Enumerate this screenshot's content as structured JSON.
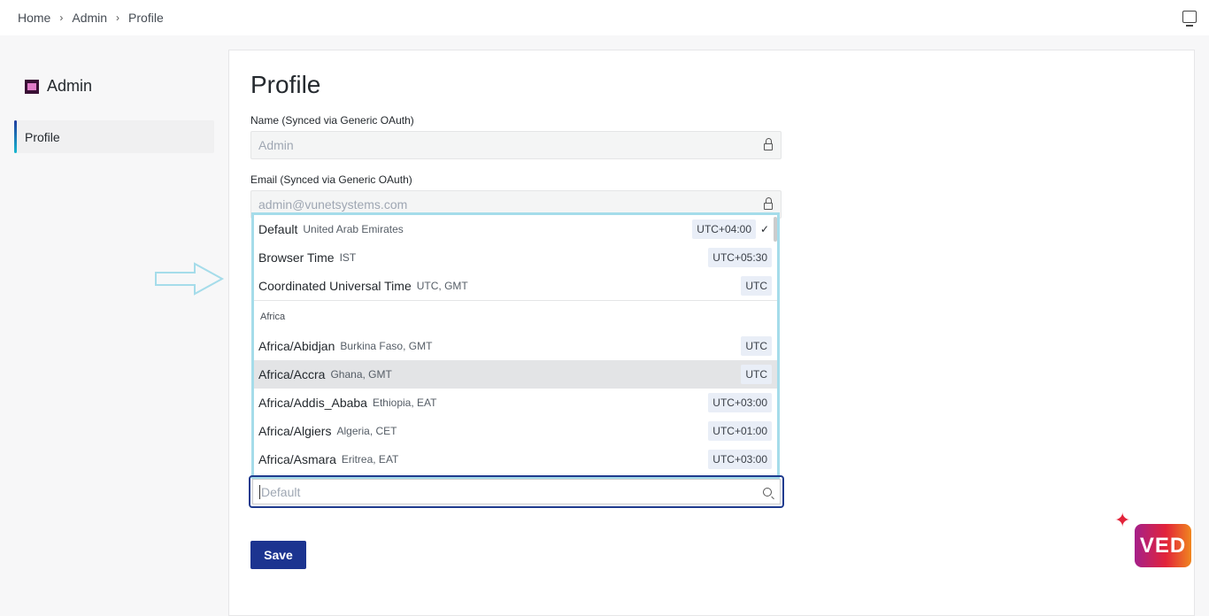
{
  "breadcrumb": [
    "Home",
    "Admin",
    "Profile"
  ],
  "sidebar": {
    "title": "Admin",
    "items": [
      {
        "label": "Profile",
        "active": true
      }
    ]
  },
  "page_title": "Profile",
  "name_field": {
    "label": "Name (Synced via Generic OAuth)",
    "value": "Admin"
  },
  "email_field": {
    "label": "Email (Synced via Generic OAuth)",
    "value": "admin@vunetsystems.com"
  },
  "timezone": {
    "placeholder": "Default",
    "options": [
      {
        "name": "Default",
        "sub": "United Arab Emirates",
        "offset": "UTC+04:00",
        "selected": true
      },
      {
        "name": "Browser Time",
        "sub": "IST",
        "offset": "UTC+05:30"
      },
      {
        "name": "Coordinated Universal Time",
        "sub": "UTC, GMT",
        "offset": "UTC"
      }
    ],
    "group": "Africa",
    "group_options": [
      {
        "name": "Africa/Abidjan",
        "sub": "Burkina Faso, GMT",
        "offset": "UTC"
      },
      {
        "name": "Africa/Accra",
        "sub": "Ghana, GMT",
        "offset": "UTC",
        "highlighted": true
      },
      {
        "name": "Africa/Addis_Ababa",
        "sub": "Ethiopia, EAT",
        "offset": "UTC+03:00"
      },
      {
        "name": "Africa/Algiers",
        "sub": "Algeria, CET",
        "offset": "UTC+01:00"
      },
      {
        "name": "Africa/Asmara",
        "sub": "Eritrea, EAT",
        "offset": "UTC+03:00"
      }
    ]
  },
  "save_label": "Save",
  "logo_text": "VED",
  "colors": {
    "primary": "#1c3490",
    "dropdown_border": "#a5dcea",
    "highlight": "#e3e4e6"
  }
}
